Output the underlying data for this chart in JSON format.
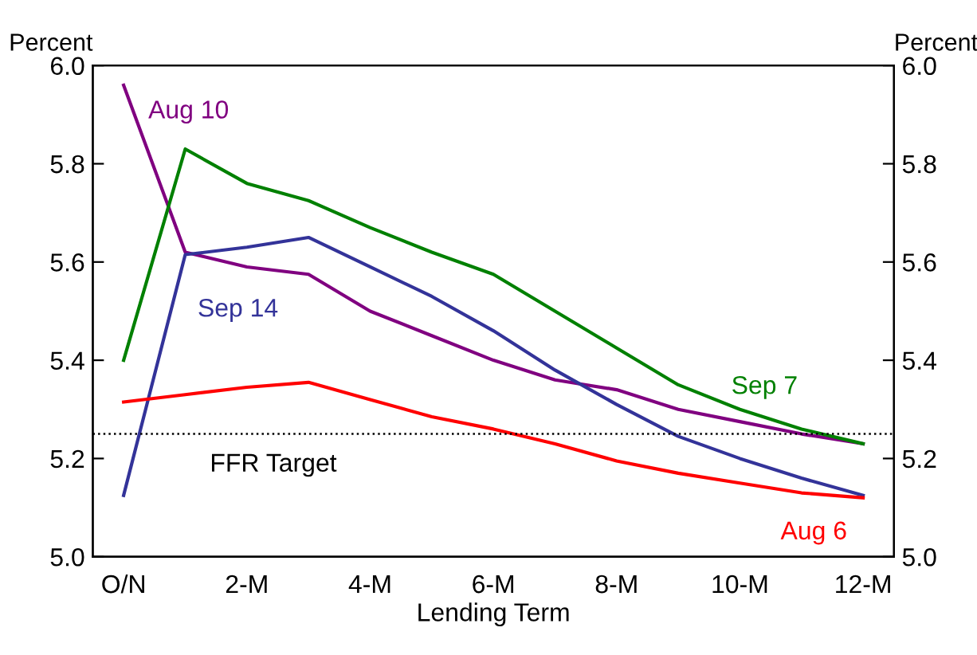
{
  "chart_data": {
    "type": "line",
    "xlabel": "Lending Term",
    "ylabel": "Percent",
    "y2label": "Percent",
    "categories": [
      "O/N",
      null,
      "2-M",
      null,
      "4-M",
      null,
      "6-M",
      null,
      "8-M",
      null,
      "10-M",
      null,
      "12-M"
    ],
    "series": [
      {
        "name": "Aug 10",
        "color": "#800080",
        "values": [
          5.96,
          5.62,
          5.59,
          5.575,
          5.5,
          5.45,
          5.4,
          5.36,
          5.34,
          5.3,
          5.275,
          5.25,
          5.23
        ]
      },
      {
        "name": "Sep 7",
        "color": "#008000",
        "values": [
          5.4,
          5.83,
          5.76,
          5.725,
          5.67,
          5.62,
          5.575,
          5.5,
          5.425,
          5.35,
          5.3,
          5.26,
          5.23
        ]
      },
      {
        "name": "Sep 14",
        "color": "#333399",
        "values": [
          5.125,
          5.615,
          5.63,
          5.65,
          5.59,
          5.53,
          5.46,
          5.38,
          5.31,
          5.245,
          5.2,
          5.16,
          5.125
        ]
      },
      {
        "name": "Aug 6",
        "color": "#ff0000",
        "values": [
          5.315,
          5.33,
          5.345,
          5.355,
          5.32,
          5.285,
          5.26,
          5.23,
          5.195,
          5.17,
          5.15,
          5.13,
          5.12
        ]
      }
    ],
    "ylim": [
      5.0,
      6.0
    ],
    "yticks": [
      {
        "value": 5.0,
        "label": "5.0"
      },
      {
        "value": 5.2,
        "label": "5.2"
      },
      5.4,
      {
        "value": 5.6,
        "label": "5.6"
      },
      {
        "value": 5.8,
        "label": "5.8"
      },
      {
        "value": 6.0,
        "label": "6.0"
      }
    ],
    "y2lim": [
      5.0,
      6.0
    ],
    "y2ticks": [
      {
        "value": 5.0,
        "label": "5.0"
      },
      {
        "value": 5.2,
        "label": "5.2"
      },
      5.4,
      {
        "value": 5.6,
        "label": "5.6"
      },
      {
        "value": 5.8,
        "label": "5.8"
      },
      {
        "value": 6.0,
        "label": "6.0"
      }
    ],
    "ref_lines": [
      {
        "axis": "y",
        "value": 5.25,
        "label": "FFR Target",
        "color": "#000000",
        "line_style": "dotted"
      }
    ],
    "legend": false,
    "grid": false,
    "marker": "none",
    "line_style": "solid"
  }
}
